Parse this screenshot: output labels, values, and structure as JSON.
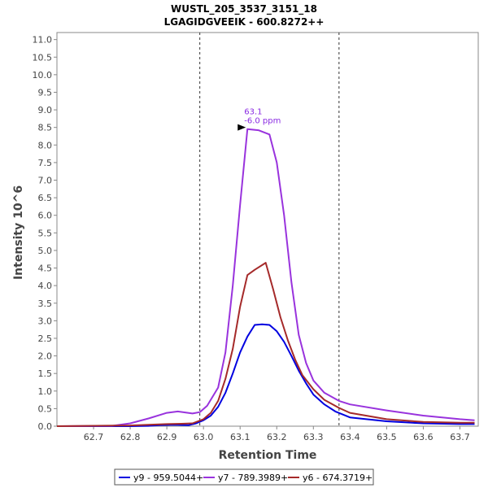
{
  "chart_data": {
    "type": "line",
    "title": "WUSTL_205_3537_3151_18",
    "subtitle": "LGAGIDGVEEIK - 600.8272++",
    "xlabel": "Retention Time",
    "ylabel": "Intensity 10^6",
    "xlim": [
      62.6,
      63.75
    ],
    "ylim": [
      0,
      11.2
    ],
    "xticks": [
      "62.7",
      "62.8",
      "62.9",
      "63.0",
      "63.1",
      "63.2",
      "63.3",
      "63.4",
      "63.5",
      "63.6",
      "63.7"
    ],
    "yticks": [
      "0.0",
      "0.5",
      "1.0",
      "1.5",
      "2.0",
      "2.5",
      "3.0",
      "3.5",
      "4.0",
      "4.5",
      "5.0",
      "5.5",
      "6.0",
      "6.5",
      "7.0",
      "7.5",
      "8.0",
      "8.5",
      "9.0",
      "9.5",
      "10.0",
      "10.5",
      "11.0"
    ],
    "boundaries": [
      62.99,
      63.37
    ],
    "annotation": {
      "x": 63.12,
      "y": 8.5,
      "line1": "63.1",
      "line2": "-6.0 ppm",
      "color": "#8a2be2"
    },
    "grid": false,
    "legend_position": "bottom",
    "series": [
      {
        "name": "y9 - 959.5044+",
        "color": "#0000e0",
        "x": [
          62.6,
          62.8,
          62.85,
          62.88,
          62.92,
          62.96,
          62.98,
          63.0,
          63.02,
          63.04,
          63.06,
          63.08,
          63.1,
          63.12,
          63.14,
          63.16,
          63.18,
          63.2,
          63.22,
          63.24,
          63.26,
          63.28,
          63.3,
          63.33,
          63.36,
          63.4,
          63.5,
          63.6,
          63.7,
          63.74
        ],
        "values": [
          0.0,
          0.0,
          0.01,
          0.03,
          0.04,
          0.03,
          0.08,
          0.17,
          0.3,
          0.55,
          0.95,
          1.5,
          2.1,
          2.55,
          2.88,
          2.9,
          2.88,
          2.7,
          2.4,
          2.0,
          1.58,
          1.22,
          0.9,
          0.62,
          0.42,
          0.25,
          0.14,
          0.08,
          0.06,
          0.06
        ]
      },
      {
        "name": "y7 - 789.3989+",
        "color": "#9933dd",
        "x": [
          62.6,
          62.75,
          62.8,
          62.85,
          62.9,
          62.93,
          62.97,
          62.99,
          63.01,
          63.04,
          63.06,
          63.08,
          63.1,
          63.12,
          63.15,
          63.18,
          63.2,
          63.22,
          63.24,
          63.26,
          63.28,
          63.3,
          63.33,
          63.37,
          63.4,
          63.5,
          63.6,
          63.7,
          63.74
        ],
        "values": [
          0.0,
          0.01,
          0.08,
          0.22,
          0.38,
          0.42,
          0.36,
          0.4,
          0.58,
          1.1,
          2.1,
          4.0,
          6.3,
          8.45,
          8.42,
          8.3,
          7.5,
          6.0,
          4.1,
          2.6,
          1.8,
          1.3,
          0.95,
          0.72,
          0.62,
          0.45,
          0.3,
          0.2,
          0.17
        ]
      },
      {
        "name": "y6 - 674.3719+",
        "color": "#a52a2a",
        "x": [
          62.6,
          62.8,
          62.85,
          62.9,
          62.94,
          62.97,
          63.0,
          63.02,
          63.04,
          63.06,
          63.08,
          63.1,
          63.12,
          63.14,
          63.17,
          63.19,
          63.21,
          63.23,
          63.25,
          63.27,
          63.3,
          63.33,
          63.37,
          63.4,
          63.5,
          63.6,
          63.7,
          63.74
        ],
        "values": [
          0.0,
          0.02,
          0.04,
          0.06,
          0.07,
          0.08,
          0.2,
          0.38,
          0.72,
          1.35,
          2.2,
          3.4,
          4.3,
          4.45,
          4.65,
          3.9,
          3.1,
          2.45,
          1.9,
          1.45,
          1.05,
          0.75,
          0.52,
          0.38,
          0.2,
          0.12,
          0.1,
          0.1
        ]
      }
    ]
  }
}
